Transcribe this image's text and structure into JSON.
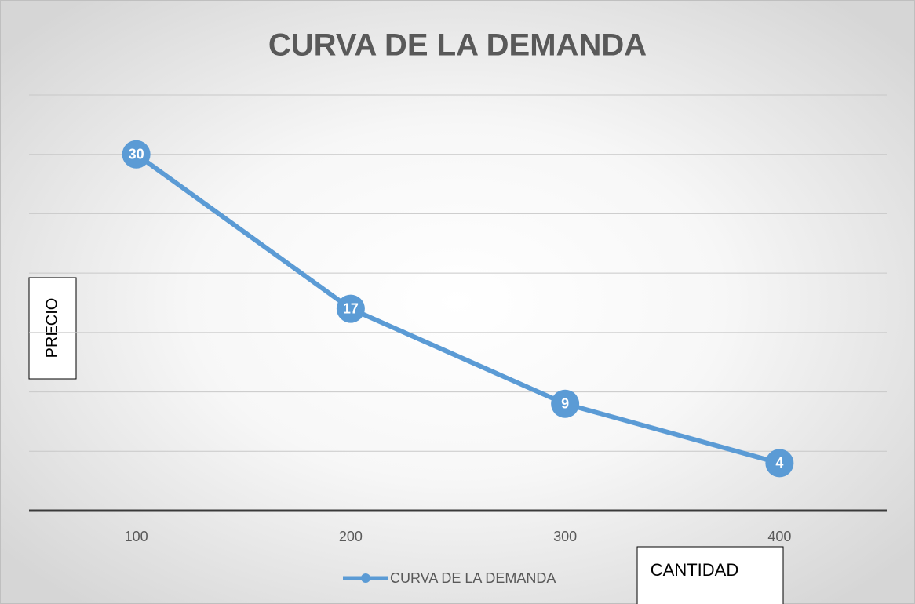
{
  "chart_data": {
    "type": "line",
    "title": "CURVA DE LA DEMANDA",
    "x_label": "CANTIDAD",
    "y_label": "PRECIO",
    "categories": [
      "100",
      "200",
      "300",
      "400"
    ],
    "series": [
      {
        "name": "CURVA DE LA DEMANDA",
        "color": "#5b9bd5",
        "values": [
          30,
          17,
          9,
          4
        ]
      }
    ],
    "ylim": [
      0,
      35
    ],
    "yticks": [
      0,
      5,
      10,
      15,
      20,
      25,
      30,
      35
    ],
    "grid": true,
    "legend": "bottom"
  }
}
